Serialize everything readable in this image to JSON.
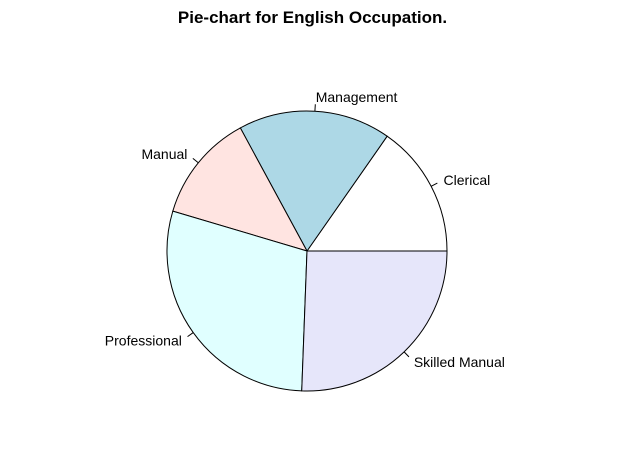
{
  "chart_data": {
    "type": "pie",
    "title": "Pie-chart for English Occupation.",
    "categories": [
      "Clerical",
      "Management",
      "Manual",
      "Professional",
      "Skilled Manual"
    ],
    "values": [
      15.3,
      17.6,
      12.5,
      29.0,
      25.6
    ],
    "colors": [
      "#ffffff",
      "#add8e6",
      "#ffe4e1",
      "#e0ffff",
      "#e6e6fa"
    ],
    "direction": "counterclockwise",
    "start_angle_deg": 0,
    "legend": "none"
  }
}
